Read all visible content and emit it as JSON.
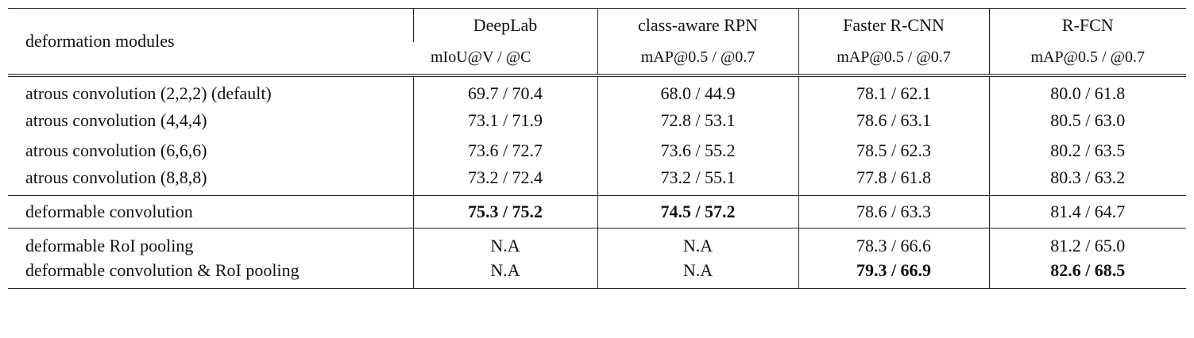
{
  "header": {
    "first": "deformation modules",
    "columns": [
      {
        "name": "DeepLab",
        "metric": "mIoU@V / @C"
      },
      {
        "name": "class-aware RPN",
        "metric": "mAP@0.5 / @0.7"
      },
      {
        "name": "Faster R-CNN",
        "metric": "mAP@0.5 / @0.7"
      },
      {
        "name": "R-FCN",
        "metric": "mAP@0.5 / @0.7"
      }
    ]
  },
  "groups": [
    {
      "rows": [
        {
          "label": "atrous convolution (2,2,2) (default)",
          "cells": [
            "69.7 / 70.4",
            "68.0 / 44.9",
            "78.1 / 62.1",
            "80.0 / 61.8"
          ],
          "bold": []
        },
        {
          "label": "atrous convolution (4,4,4)",
          "cells": [
            "73.1 / 71.9",
            "72.8 / 53.1",
            "78.6 / 63.1",
            "80.5 / 63.0"
          ],
          "bold": []
        },
        {
          "label": "atrous convolution (6,6,6)",
          "cells": [
            "73.6 / 72.7",
            "73.6 / 55.2",
            "78.5 / 62.3",
            "80.2 / 63.5"
          ],
          "bold": []
        },
        {
          "label": "atrous convolution (8,8,8)",
          "cells": [
            "73.2 / 72.4",
            "73.2 / 55.1",
            "77.8 / 61.8",
            "80.3 / 63.2"
          ],
          "bold": []
        }
      ]
    },
    {
      "rows": [
        {
          "label": "deformable convolution",
          "cells": [
            "75.3 / 75.2",
            "74.5 / 57.2",
            "78.6 / 63.3",
            "81.4 / 64.7"
          ],
          "bold": [
            0,
            1
          ]
        }
      ]
    },
    {
      "rows": [
        {
          "label": "deformable RoI pooling",
          "cells": [
            "N.A",
            "N.A",
            "78.3 / 66.6",
            "81.2 / 65.0"
          ],
          "bold": []
        },
        {
          "label": "deformable convolution & RoI pooling",
          "cells": [
            "N.A",
            "N.A",
            "79.3 / 66.9",
            "82.6 / 68.5"
          ],
          "bold": [
            2,
            3
          ]
        }
      ]
    }
  ]
}
